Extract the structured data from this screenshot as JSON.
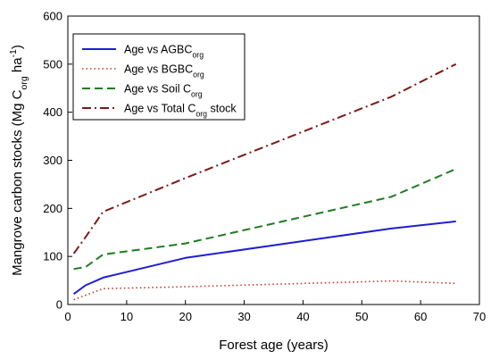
{
  "chart_data": {
    "type": "line",
    "xlabel": "Forest age (years)",
    "ylabel": {
      "parts": [
        {
          "t": "Mangrove carbon stocks (Mg C"
        },
        {
          "t": "org",
          "sub": true
        },
        {
          "t": " ha"
        },
        {
          "t": "-1",
          "sup": true
        },
        {
          "t": ")"
        }
      ]
    },
    "xlim": [
      0,
      70
    ],
    "ylim": [
      0,
      600
    ],
    "xticks": [
      "0",
      "10",
      "20",
      "30",
      "40",
      "50",
      "60",
      "70"
    ],
    "yticks": [
      "0",
      "100",
      "200",
      "300",
      "400",
      "500",
      "600"
    ],
    "grid": false,
    "legend": "top-left",
    "series": [
      {
        "key": "agbc",
        "label": [
          {
            "t": "Age vs AGBC"
          },
          {
            "t": "org",
            "sub": true
          }
        ],
        "color": "#1f1fcf",
        "dash": "solid",
        "x": [
          1,
          3,
          6,
          20,
          55,
          66
        ],
        "y": [
          22,
          40,
          56,
          97,
          158,
          173
        ]
      },
      {
        "key": "bgbc",
        "label": [
          {
            "t": "Age vs BGBC"
          },
          {
            "t": "org",
            "sub": true
          }
        ],
        "color": "#c0392b",
        "dash": "dotted",
        "x": [
          1,
          6,
          20,
          55,
          66
        ],
        "y": [
          10,
          33,
          37,
          49,
          44
        ]
      },
      {
        "key": "soil",
        "label": [
          {
            "t": "Age vs Soil C"
          },
          {
            "t": "org",
            "sub": true
          }
        ],
        "color": "#1e7d1e",
        "dash": "dash",
        "x": [
          1,
          3,
          6,
          20,
          55,
          66
        ],
        "y": [
          74,
          78,
          104,
          127,
          224,
          282
        ]
      },
      {
        "key": "total",
        "label": [
          {
            "t": "Age vs Total C"
          },
          {
            "t": "org",
            "sub": true
          },
          {
            "t": " stock"
          }
        ],
        "color": "#7b1a1a",
        "dash": "dashdot",
        "x": [
          1,
          3,
          6,
          20,
          55,
          66
        ],
        "y": [
          106,
          140,
          193,
          263,
          432,
          500
        ]
      }
    ]
  }
}
